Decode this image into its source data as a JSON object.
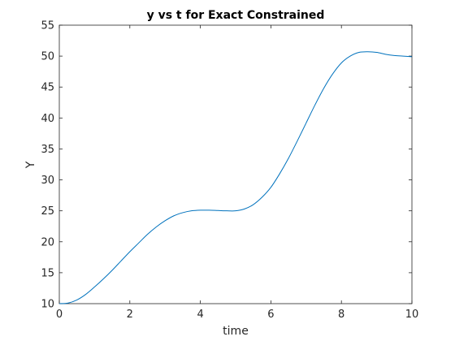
{
  "chart_data": {
    "type": "line",
    "title": "y vs t for Exact Constrained",
    "xlabel": "time",
    "ylabel": "Y",
    "xlim": [
      0,
      10
    ],
    "ylim": [
      10,
      55
    ],
    "xticks": [
      0,
      2,
      4,
      6,
      8,
      10
    ],
    "yticks": [
      10,
      15,
      20,
      25,
      30,
      35,
      40,
      45,
      50,
      55
    ],
    "grid": false,
    "series": [
      {
        "color": "#0072BD",
        "x": [
          0,
          0.25,
          0.5,
          0.75,
          1.0,
          1.25,
          1.5,
          1.75,
          2.0,
          2.25,
          2.5,
          2.75,
          3.0,
          3.25,
          3.5,
          3.75,
          4.0,
          4.25,
          4.5,
          4.75,
          5.0,
          5.25,
          5.5,
          5.75,
          6.0,
          6.25,
          6.5,
          6.75,
          7.0,
          7.25,
          7.5,
          7.75,
          8.0,
          8.25,
          8.5,
          8.75,
          9.0,
          9.25,
          9.5,
          9.75,
          10.0
        ],
        "y": [
          10.0,
          10.1,
          10.6,
          11.5,
          12.7,
          14.0,
          15.4,
          16.9,
          18.4,
          19.8,
          21.2,
          22.4,
          23.4,
          24.2,
          24.7,
          25.0,
          25.1,
          25.1,
          25.05,
          25.0,
          25.0,
          25.3,
          26.0,
          27.2,
          28.8,
          31.0,
          33.5,
          36.3,
          39.2,
          42.1,
          44.8,
          47.1,
          48.9,
          50.0,
          50.6,
          50.7,
          50.6,
          50.3,
          50.1,
          50.0,
          49.9
        ]
      }
    ]
  }
}
